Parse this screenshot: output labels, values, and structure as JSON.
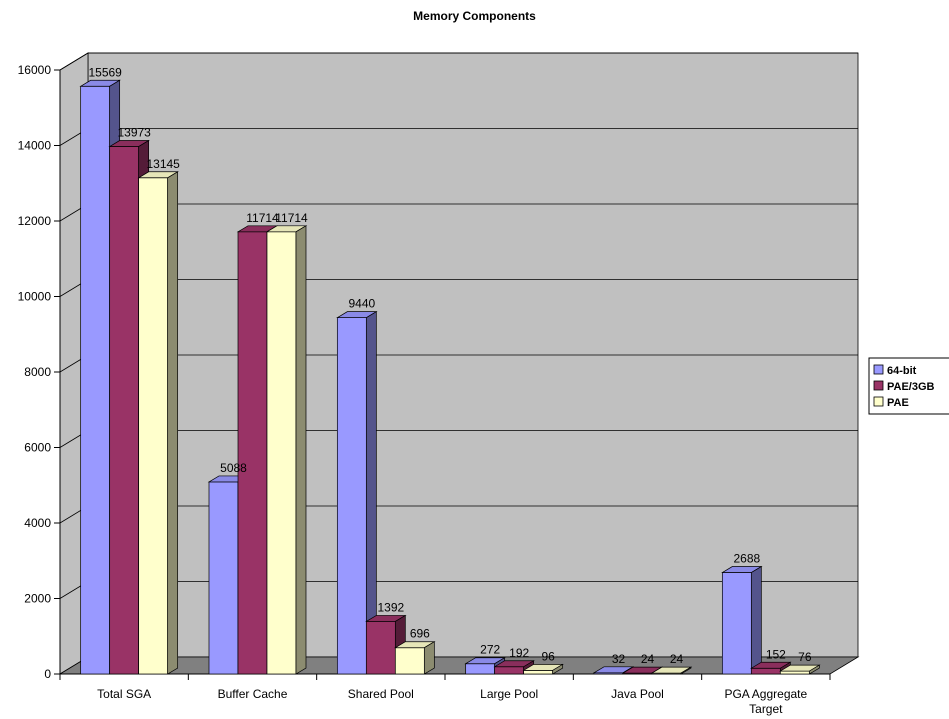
{
  "chart_data": {
    "type": "bar",
    "title": "Memory Components",
    "categories": [
      "Total SGA",
      "Buffer Cache",
      "Shared Pool",
      "Large Pool",
      "Java Pool",
      "PGA Aggregate Target"
    ],
    "series": [
      {
        "name": "64-bit",
        "values": [
          15569,
          5088,
          9440,
          272,
          32,
          2688
        ],
        "color": "#9999ff"
      },
      {
        "name": "PAE/3GB",
        "values": [
          13973,
          11714,
          1392,
          192,
          24,
          152
        ],
        "color": "#993366"
      },
      {
        "name": "PAE",
        "values": [
          13145,
          11714,
          696,
          96,
          24,
          76
        ],
        "color": "#ffffcc"
      }
    ],
    "ylim": [
      0,
      16000
    ],
    "yticks": [
      0,
      2000,
      4000,
      6000,
      8000,
      10000,
      12000,
      14000,
      16000
    ],
    "grid": true,
    "three_d": true,
    "legend_position": "right",
    "wall_color": "#c0c0c0",
    "floor_color": "#808080"
  }
}
